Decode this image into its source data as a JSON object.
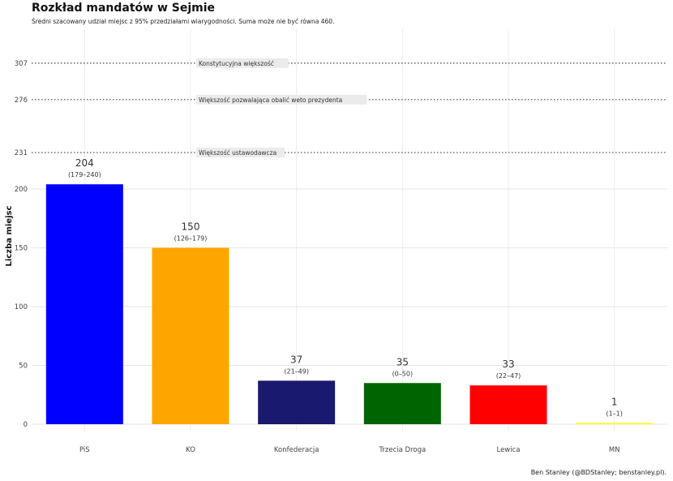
{
  "title": "Rozkład mandatów w Sejmie",
  "subtitle": "Średni szacowany udział miejsc z 95% przedziałami wiarygodności. Suma może nie być równa 460.",
  "caption": "Ben Stanley (@BDStanley; benstanley.pl).",
  "chart_data": {
    "type": "bar",
    "ylabel": "Liczba miejsc",
    "xlabel": "",
    "ylim": [
      0,
      320
    ],
    "grid": true,
    "categories": [
      "PiS",
      "KO",
      "Konfederacja",
      "Trzecia Droga",
      "Lewica",
      "MN"
    ],
    "values": [
      204,
      150,
      37,
      35,
      33,
      1
    ],
    "intervals": [
      "(179–240)",
      "(126–179)",
      "(21–49)",
      "(0–50)",
      "(22–47)",
      "(1–1)"
    ],
    "colors": [
      "#0000ff",
      "#ffa500",
      "#191970",
      "#006400",
      "#ff0000",
      "#ffff00"
    ],
    "y_ticks": [
      0,
      50,
      100,
      150,
      200
    ],
    "thresholds": [
      {
        "value": 307,
        "label": "Konstytucyjna większość"
      },
      {
        "value": 276,
        "label": "Większość pozwalająca obalić weto prezydenta"
      },
      {
        "value": 231,
        "label": "Większość ustawodawcza"
      }
    ]
  }
}
